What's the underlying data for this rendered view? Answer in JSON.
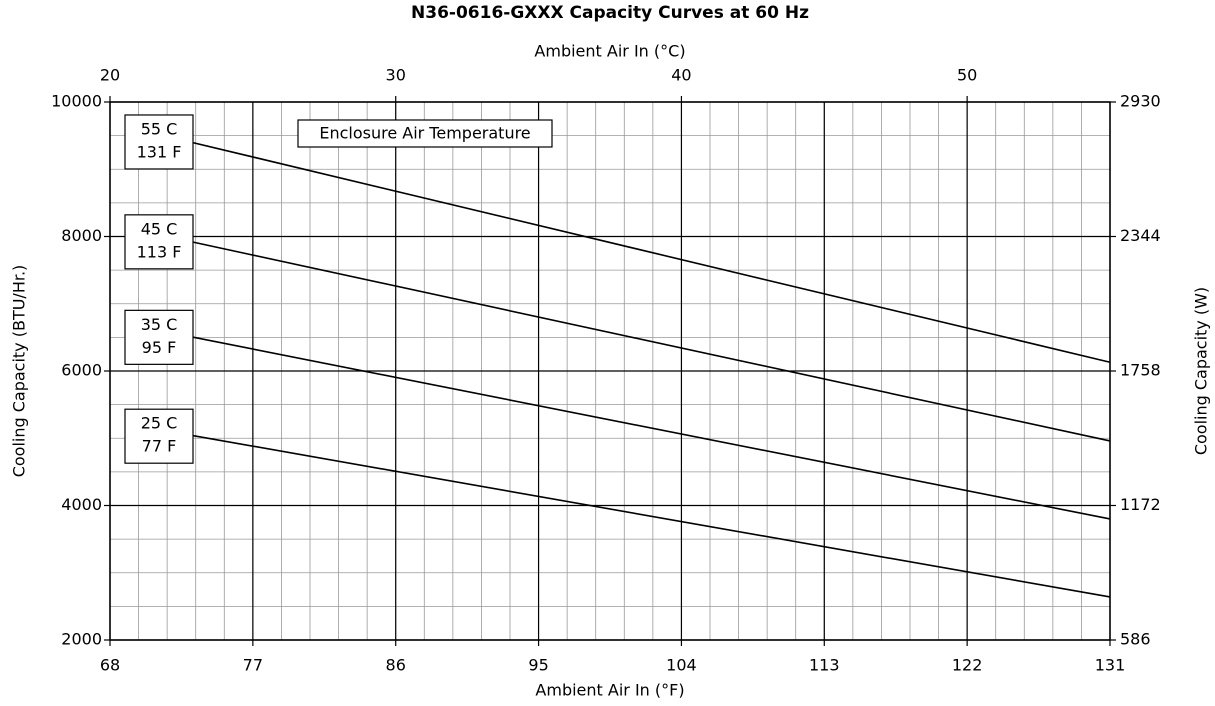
{
  "chart_data": {
    "type": "line",
    "title": "N36-0616-GXXX Capacity Curves at 60 Hz",
    "xlabel": "Ambient Air In (°F)",
    "x2label": "Ambient Air In (°C)",
    "ylabel": "Cooling Capacity (BTU/Hr.)",
    "y2label": "Cooling Capacity (W)",
    "xlim": [
      68,
      131
    ],
    "xticks": [
      68,
      77,
      86,
      95,
      104,
      113,
      122,
      131
    ],
    "x2lim": [
      20,
      55
    ],
    "x2ticks": [
      20,
      30,
      40,
      50
    ],
    "ylim": [
      2000,
      10000
    ],
    "yticks": [
      2000,
      4000,
      6000,
      8000,
      10000
    ],
    "y2lim": [
      586,
      2930
    ],
    "y2ticks": [
      586,
      1172,
      1758,
      2344,
      2930
    ],
    "grid": true,
    "minor_grid": {
      "x2_step": 1,
      "y_step": 500
    },
    "annotation": "Enclosure Air Temperature",
    "x": [
      72,
      131
    ],
    "series": [
      {
        "labels": [
          "55 C",
          "131 F"
        ],
        "color": "#000000",
        "values": [
          9465,
          6130
        ]
      },
      {
        "labels": [
          "45 C",
          "113 F"
        ],
        "color": "#000000",
        "values": [
          7980,
          4960
        ]
      },
      {
        "labels": [
          "35 C",
          "95 F"
        ],
        "color": "#000000",
        "values": [
          6560,
          3800
        ]
      },
      {
        "labels": [
          "25 C",
          "77 F"
        ],
        "color": "#000000",
        "values": [
          5090,
          2640
        ]
      }
    ]
  }
}
